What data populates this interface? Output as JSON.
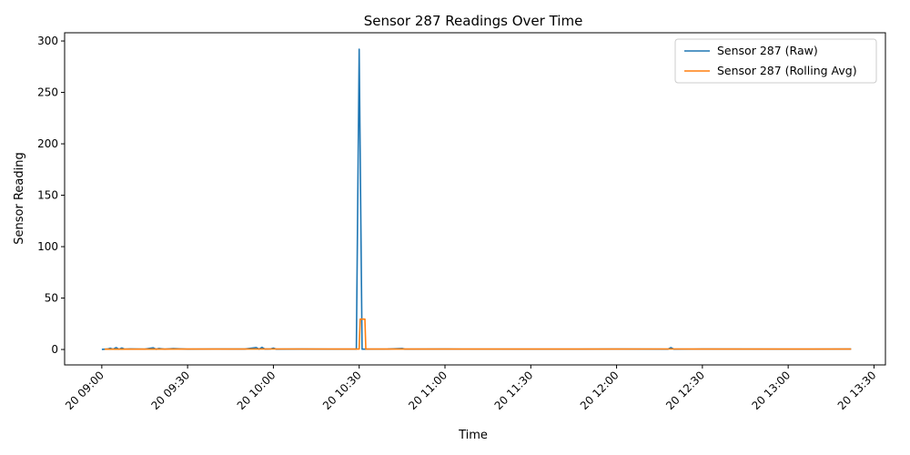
{
  "chart_data": {
    "type": "line",
    "title": "Sensor 287 Readings Over Time",
    "xlabel": "Time",
    "ylabel": "Sensor Reading",
    "x_range": [
      "2024-01-20T08:47:00",
      "2024-01-20T13:34:00"
    ],
    "ylim": [
      -15,
      308
    ],
    "y_ticks": [
      0,
      50,
      100,
      150,
      200,
      250,
      300
    ],
    "x_ticks": [
      {
        "t": "2024-01-20T09:00:00",
        "label": "20 09:00"
      },
      {
        "t": "2024-01-20T09:30:00",
        "label": "20 09:30"
      },
      {
        "t": "2024-01-20T10:00:00",
        "label": "20 10:00"
      },
      {
        "t": "2024-01-20T10:30:00",
        "label": "20 10:30"
      },
      {
        "t": "2024-01-20T11:00:00",
        "label": "20 11:00"
      },
      {
        "t": "2024-01-20T11:30:00",
        "label": "20 11:30"
      },
      {
        "t": "2024-01-20T12:00:00",
        "label": "20 12:00"
      },
      {
        "t": "2024-01-20T12:30:00",
        "label": "20 12:30"
      },
      {
        "t": "2024-01-20T13:00:00",
        "label": "20 13:00"
      },
      {
        "t": "2024-01-20T13:30:00",
        "label": "20 13:30"
      }
    ],
    "legend_position": "top-right",
    "grid": false,
    "series": [
      {
        "name": "Sensor 287 (Raw)",
        "color": "#1f77b4",
        "points": [
          [
            "2024-01-20T09:00:00",
            0.1
          ],
          [
            "2024-01-20T09:02:00",
            0.4
          ],
          [
            "2024-01-20T09:03:00",
            1.2
          ],
          [
            "2024-01-20T09:04:00",
            0.3
          ],
          [
            "2024-01-20T09:05:00",
            1.8
          ],
          [
            "2024-01-20T09:06:00",
            0.2
          ],
          [
            "2024-01-20T09:07:00",
            1.5
          ],
          [
            "2024-01-20T09:08:00",
            0.3
          ],
          [
            "2024-01-20T09:10:00",
            0.6
          ],
          [
            "2024-01-20T09:15:00",
            0.3
          ],
          [
            "2024-01-20T09:18:00",
            1.6
          ],
          [
            "2024-01-20T09:19:00",
            0.2
          ],
          [
            "2024-01-20T09:20:00",
            1.0
          ],
          [
            "2024-01-20T09:22:00",
            0.3
          ],
          [
            "2024-01-20T09:25:00",
            0.9
          ],
          [
            "2024-01-20T09:30:00",
            0.3
          ],
          [
            "2024-01-20T09:40:00",
            0.5
          ],
          [
            "2024-01-20T09:50:00",
            0.4
          ],
          [
            "2024-01-20T09:54:00",
            1.9
          ],
          [
            "2024-01-20T09:55:00",
            0.3
          ],
          [
            "2024-01-20T09:56:00",
            2.1
          ],
          [
            "2024-01-20T09:57:00",
            0.4
          ],
          [
            "2024-01-20T09:59:00",
            0.5
          ],
          [
            "2024-01-20T10:00:00",
            1.4
          ],
          [
            "2024-01-20T10:01:00",
            0.3
          ],
          [
            "2024-01-20T10:10:00",
            0.4
          ],
          [
            "2024-01-20T10:20:00",
            0.3
          ],
          [
            "2024-01-20T10:29:00",
            0.3
          ],
          [
            "2024-01-20T10:30:00",
            292
          ],
          [
            "2024-01-20T10:31:00",
            0.3
          ],
          [
            "2024-01-20T10:40:00",
            0.4
          ],
          [
            "2024-01-20T10:45:00",
            1.0
          ],
          [
            "2024-01-20T10:46:00",
            0.3
          ],
          [
            "2024-01-20T11:00:00",
            0.4
          ],
          [
            "2024-01-20T11:30:00",
            0.3
          ],
          [
            "2024-01-20T12:00:00",
            0.4
          ],
          [
            "2024-01-20T12:18:00",
            0.3
          ],
          [
            "2024-01-20T12:19:00",
            1.8
          ],
          [
            "2024-01-20T12:20:00",
            0.3
          ],
          [
            "2024-01-20T12:30:00",
            0.4
          ],
          [
            "2024-01-20T13:00:00",
            0.3
          ],
          [
            "2024-01-20T13:22:00",
            0.4
          ]
        ]
      },
      {
        "name": "Sensor 287 (Rolling Avg)",
        "color": "#ff7f0e",
        "points": [
          [
            "2024-01-20T09:01:00",
            0.3
          ],
          [
            "2024-01-20T09:30:00",
            0.4
          ],
          [
            "2024-01-20T10:00:00",
            0.5
          ],
          [
            "2024-01-20T10:30:00",
            0.4
          ],
          [
            "2024-01-20T10:30:20",
            29.5
          ],
          [
            "2024-01-20T10:32:00",
            29.5
          ],
          [
            "2024-01-20T10:32:20",
            0.4
          ],
          [
            "2024-01-20T11:00:00",
            0.4
          ],
          [
            "2024-01-20T12:00:00",
            0.4
          ],
          [
            "2024-01-20T12:20:00",
            0.5
          ],
          [
            "2024-01-20T13:00:00",
            0.4
          ],
          [
            "2024-01-20T13:22:00",
            0.4
          ]
        ]
      }
    ]
  }
}
